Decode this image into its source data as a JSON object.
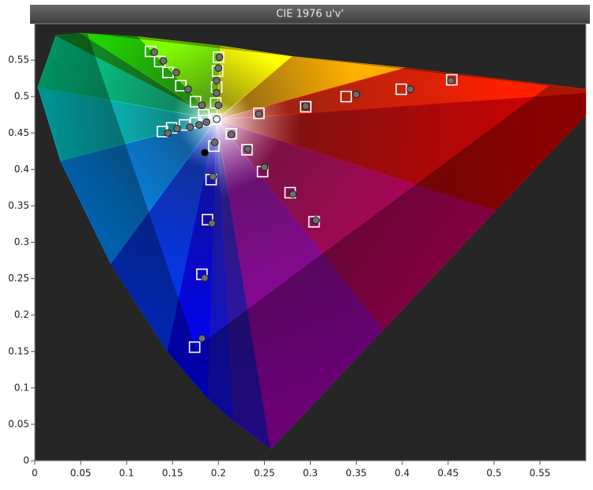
{
  "chart_data": {
    "type": "scatter",
    "title": "CIE 1976 u'v'",
    "xlim": [
      0,
      0.6
    ],
    "ylim": [
      0,
      0.6
    ],
    "xticks": [
      0,
      0.05,
      0.1,
      0.15,
      0.2,
      0.25,
      0.3,
      0.35,
      0.4,
      0.45,
      0.5,
      0.55
    ],
    "yticks": [
      0,
      0.05,
      0.1,
      0.15,
      0.2,
      0.25,
      0.3,
      0.35,
      0.4,
      0.45,
      0.5,
      0.55
    ],
    "series": [
      {
        "marker": "square",
        "color": "#ffffff",
        "x": [
          0.126,
          0.136,
          0.145,
          0.159,
          0.175,
          0.184,
          0.2,
          0.199,
          0.198,
          0.197,
          0.197,
          0.244,
          0.295,
          0.339,
          0.399,
          0.454,
          0.139,
          0.149,
          0.163,
          0.175,
          0.185,
          0.195,
          0.192,
          0.188,
          0.182,
          0.174,
          0.214,
          0.231,
          0.248,
          0.278,
          0.304
        ],
        "y": [
          0.562,
          0.548,
          0.533,
          0.515,
          0.493,
          0.475,
          0.554,
          0.535,
          0.513,
          0.491,
          0.469,
          0.477,
          0.486,
          0.5,
          0.51,
          0.523,
          0.452,
          0.457,
          0.461,
          0.464,
          0.467,
          0.432,
          0.386,
          0.331,
          0.256,
          0.156,
          0.449,
          0.427,
          0.397,
          0.368,
          0.328
        ]
      },
      {
        "marker": "circle",
        "color": "#6e6e6e",
        "x": [
          0.13,
          0.14,
          0.154,
          0.167,
          0.182,
          0.201,
          0.2,
          0.198,
          0.198,
          0.2,
          0.244,
          0.295,
          0.35,
          0.409,
          0.453,
          0.145,
          0.155,
          0.169,
          0.179,
          0.187,
          0.196,
          0.194,
          0.193,
          0.185,
          0.182,
          0.214,
          0.232,
          0.25,
          0.281,
          0.306
        ],
        "y": [
          0.561,
          0.549,
          0.533,
          0.51,
          0.488,
          0.554,
          0.539,
          0.522,
          0.505,
          0.488,
          0.476,
          0.487,
          0.503,
          0.51,
          0.522,
          0.45,
          0.456,
          0.458,
          0.461,
          0.465,
          0.437,
          0.39,
          0.326,
          0.251,
          0.168,
          0.448,
          0.428,
          0.403,
          0.366,
          0.33
        ]
      },
      {
        "marker": "circle",
        "color": "#ffffff",
        "x": [
          0.198
        ],
        "y": [
          0.469
        ]
      },
      {
        "marker": "circle",
        "color": "#000000",
        "x": [
          0.185
        ],
        "y": [
          0.423
        ]
      }
    ]
  }
}
